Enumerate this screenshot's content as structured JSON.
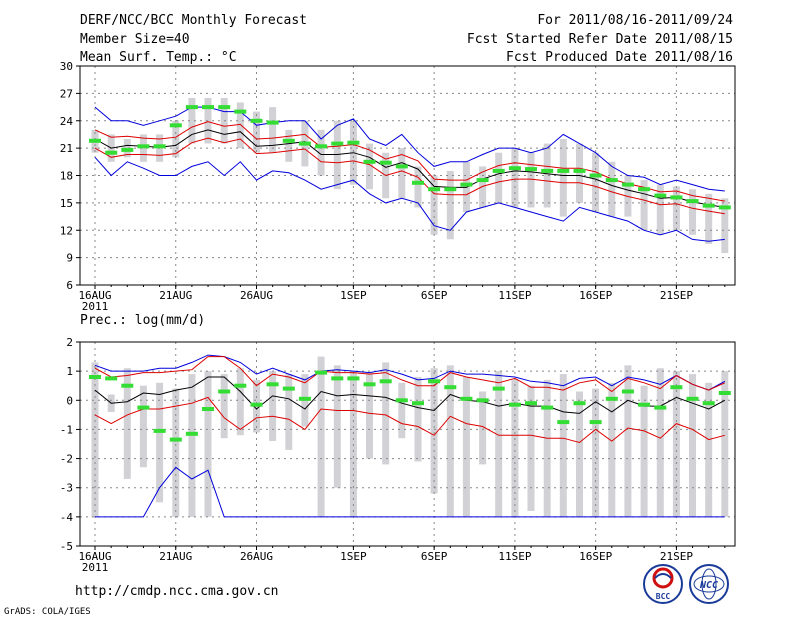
{
  "header": {
    "title": "DERF/NCC/BCC Monthly Forecast",
    "member_size": "Member Size=40",
    "variable": "Mean Surf. Temp.: °C",
    "period": "For 2011/08/16-2011/09/24",
    "started": "Fcst Started Refer Date 2011/08/15",
    "produced": "Fcst Produced Date 2011/08/16"
  },
  "footer": {
    "url": "http://cmdp.ncc.cma.gov.cn",
    "grads": "GrADS: COLA/IGES",
    "logo_bcc_text": "BCC",
    "logo_ncc_text": "NCC"
  },
  "colors": {
    "ensemble_mean": "#000000",
    "std_band": "#dd0000",
    "min_max": "#0000dd",
    "observed": "#33dd33",
    "spread_box": "#d2d2d6",
    "grid": "#888888"
  },
  "chart_data": [
    {
      "type": "line",
      "title": "Mean Surf. Temp.: °C",
      "x_start": "2011-08-16",
      "days": 40,
      "xticks": [
        {
          "day": 0,
          "label": "16AUG"
        },
        {
          "day": 5,
          "label": "21AUG"
        },
        {
          "day": 10,
          "label": "26AUG"
        },
        {
          "day": 16,
          "label": "1SEP"
        },
        {
          "day": 21,
          "label": "6SEP"
        },
        {
          "day": 26,
          "label": "11SEP"
        },
        {
          "day": 31,
          "label": "16SEP"
        },
        {
          "day": 36,
          "label": "21SEP"
        }
      ],
      "year_label": "2011",
      "ylim": [
        6,
        30
      ],
      "yticks": [
        "6",
        "9",
        "12",
        "15",
        "18",
        "21",
        "24",
        "27",
        "30"
      ],
      "grid": true,
      "series": [
        {
          "name": "ensemble mean",
          "values": [
            22.0,
            21.0,
            21.3,
            21.2,
            21.1,
            21.3,
            22.5,
            23.0,
            22.5,
            22.8,
            21.2,
            21.3,
            21.5,
            21.7,
            20.3,
            20.3,
            20.5,
            20.0,
            18.9,
            19.4,
            18.7,
            16.8,
            16.7,
            16.7,
            17.6,
            18.2,
            18.5,
            18.4,
            18.2,
            18.0,
            18.0,
            17.6,
            16.9,
            16.4,
            16.0,
            15.5,
            15.6,
            15.1,
            14.8,
            14.5
          ]
        },
        {
          "name": "mean + std",
          "values": [
            23.0,
            22.2,
            22.3,
            22.1,
            22.0,
            22.2,
            23.3,
            23.9,
            23.4,
            23.6,
            22.0,
            22.1,
            22.3,
            22.5,
            21.1,
            21.2,
            21.4,
            20.8,
            19.8,
            20.3,
            19.6,
            17.6,
            17.5,
            17.5,
            18.4,
            19.1,
            19.4,
            19.2,
            19.0,
            18.8,
            18.8,
            18.4,
            17.6,
            17.1,
            16.7,
            16.2,
            16.3,
            15.8,
            15.5,
            15.2
          ]
        },
        {
          "name": "mean - std",
          "values": [
            21.0,
            20.0,
            20.3,
            20.3,
            20.2,
            20.4,
            21.6,
            22.1,
            21.6,
            22.0,
            20.4,
            20.5,
            20.7,
            20.9,
            19.5,
            19.4,
            19.6,
            19.2,
            18.0,
            18.5,
            17.8,
            16.0,
            15.9,
            15.9,
            16.8,
            17.3,
            17.6,
            17.6,
            17.4,
            17.2,
            17.2,
            16.8,
            16.2,
            15.7,
            15.3,
            14.8,
            14.9,
            14.4,
            14.1,
            13.8
          ]
        },
        {
          "name": "ensemble max",
          "values": [
            25.5,
            24.0,
            24.0,
            23.5,
            24.0,
            24.5,
            25.5,
            25.5,
            25.0,
            25.0,
            23.5,
            23.8,
            24.0,
            24.0,
            22.0,
            23.5,
            24.2,
            22.0,
            21.3,
            22.5,
            20.5,
            19.0,
            19.5,
            19.5,
            20.3,
            21.0,
            21.0,
            20.5,
            21.0,
            22.5,
            21.5,
            20.5,
            19.0,
            18.0,
            17.8,
            17.0,
            17.5,
            17.0,
            16.5,
            16.3
          ]
        },
        {
          "name": "ensemble min",
          "values": [
            20.0,
            18.0,
            19.5,
            18.8,
            18.0,
            18.0,
            19.0,
            19.5,
            18.0,
            19.5,
            17.5,
            18.5,
            18.3,
            17.5,
            16.5,
            17.0,
            17.5,
            16.0,
            15.0,
            15.5,
            15.0,
            12.5,
            12.0,
            14.0,
            14.5,
            15.0,
            14.5,
            14.0,
            13.5,
            13.0,
            14.5,
            14.0,
            13.5,
            13.0,
            12.0,
            11.5,
            12.0,
            11.0,
            10.8,
            11.0
          ]
        },
        {
          "name": "observed",
          "values": [
            21.8,
            20.5,
            20.8,
            21.2,
            21.2,
            23.5,
            25.5,
            25.5,
            25.5,
            25.0,
            24.0,
            23.8,
            21.8,
            21.5,
            21.2,
            21.5,
            21.6,
            19.5,
            19.4,
            19.0,
            17.2,
            16.5,
            16.5,
            17.0,
            17.5,
            18.5,
            18.8,
            18.7,
            18.5,
            18.5,
            18.5,
            18.0,
            17.5,
            17.0,
            16.5,
            15.8,
            15.6,
            15.2,
            14.7,
            14.5
          ]
        },
        {
          "name": "spread upper",
          "values": [
            23.0,
            22.5,
            22.0,
            22.5,
            22.5,
            24.0,
            26.5,
            26.5,
            26.5,
            26.0,
            25.0,
            25.5,
            23.0,
            24.0,
            23.0,
            24.0,
            24.0,
            21.5,
            20.5,
            21.0,
            19.0,
            18.0,
            18.5,
            19.5,
            19.0,
            20.5,
            21.0,
            20.5,
            21.5,
            22.0,
            21.5,
            20.5,
            19.5,
            18.0,
            17.5,
            17.0,
            16.8,
            16.5,
            16.0,
            15.5
          ]
        },
        {
          "name": "spread lower",
          "values": [
            20.5,
            19.5,
            20.0,
            19.5,
            19.5,
            20.0,
            21.5,
            21.5,
            21.5,
            21.0,
            20.5,
            20.5,
            19.5,
            19.0,
            18.0,
            16.5,
            17.0,
            16.5,
            15.5,
            15.5,
            14.5,
            11.5,
            11.0,
            14.0,
            14.5,
            15.0,
            14.5,
            14.5,
            14.5,
            13.5,
            15.0,
            14.0,
            13.5,
            13.5,
            12.0,
            11.5,
            12.0,
            11.5,
            10.5,
            9.5
          ]
        }
      ]
    },
    {
      "type": "line",
      "title": "Prec.: log(mm/d)",
      "x_start": "2011-08-16",
      "days": 40,
      "xticks": [
        {
          "day": 0,
          "label": "16AUG"
        },
        {
          "day": 5,
          "label": "21AUG"
        },
        {
          "day": 10,
          "label": "26AUG"
        },
        {
          "day": 16,
          "label": "1SEP"
        },
        {
          "day": 21,
          "label": "6SEP"
        },
        {
          "day": 26,
          "label": "11SEP"
        },
        {
          "day": 31,
          "label": "16SEP"
        },
        {
          "day": 36,
          "label": "21SEP"
        }
      ],
      "year_label": "2011",
      "ylim": [
        -5,
        2
      ],
      "yticks": [
        "-5",
        "-4",
        "-3",
        "-2",
        "-1",
        "0",
        "1",
        "2"
      ],
      "grid": true,
      "series": [
        {
          "name": "ensemble mean",
          "values": [
            0.35,
            -0.1,
            -0.05,
            0.25,
            0.2,
            0.35,
            0.45,
            0.8,
            0.8,
            0.3,
            -0.3,
            0.15,
            0.05,
            -0.3,
            0.3,
            0.15,
            0.2,
            0.15,
            0.1,
            -0.1,
            -0.25,
            -0.35,
            0.2,
            0.0,
            -0.05,
            -0.2,
            -0.1,
            -0.2,
            -0.2,
            -0.4,
            -0.45,
            -0.05,
            -0.4,
            0.0,
            -0.2,
            -0.2,
            0.1,
            -0.1,
            -0.3,
            0.0
          ]
        },
        {
          "name": "mean + std",
          "values": [
            1.1,
            0.8,
            0.85,
            0.95,
            0.95,
            1.0,
            1.05,
            1.5,
            1.5,
            1.1,
            0.5,
            0.9,
            0.8,
            0.6,
            1.0,
            0.95,
            0.95,
            0.9,
            0.95,
            0.7,
            0.5,
            0.5,
            0.95,
            0.8,
            0.7,
            0.6,
            0.75,
            0.45,
            0.45,
            0.35,
            0.6,
            0.7,
            0.3,
            0.75,
            0.6,
            0.4,
            0.85,
            0.55,
            0.35,
            0.6
          ]
        },
        {
          "name": "mean - std",
          "values": [
            -0.5,
            -0.8,
            -0.5,
            -0.3,
            -0.3,
            -0.2,
            -0.1,
            0.1,
            -0.6,
            -1.0,
            -0.6,
            -0.55,
            -0.65,
            -1.0,
            -0.3,
            -0.35,
            -0.35,
            -0.45,
            -0.5,
            -0.8,
            -0.9,
            -1.2,
            -0.55,
            -0.8,
            -0.9,
            -1.2,
            -1.2,
            -1.2,
            -1.3,
            -1.3,
            -1.45,
            -1.0,
            -1.4,
            -0.95,
            -1.05,
            -1.3,
            -0.8,
            -1.0,
            -1.35,
            -1.2
          ]
        },
        {
          "name": "ensemble max",
          "values": [
            1.2,
            1.0,
            1.0,
            1.0,
            1.1,
            1.1,
            1.3,
            1.55,
            1.5,
            1.3,
            0.9,
            1.1,
            0.9,
            0.7,
            1.0,
            1.05,
            1.0,
            0.95,
            1.05,
            0.9,
            0.7,
            0.75,
            1.0,
            0.9,
            0.9,
            0.85,
            0.8,
            0.65,
            0.6,
            0.5,
            0.75,
            0.8,
            0.5,
            0.8,
            0.7,
            0.55,
            0.85,
            0.55,
            0.35,
            0.65
          ]
        },
        {
          "name": "ensemble min",
          "values": [
            -4.0,
            -4.0,
            -4.0,
            -4.0,
            -3.0,
            -2.3,
            -2.7,
            -2.4,
            -4.0,
            -4.0,
            -4.0,
            -4.0,
            -4.0,
            -4.0,
            -4.0,
            -4.0,
            -4.0,
            -4.0,
            -4.0,
            -4.0,
            -4.0,
            -4.0,
            -4.0,
            -4.0,
            -4.0,
            -4.0,
            -4.0,
            -4.0,
            -4.0,
            -4.0,
            -4.0,
            -4.0,
            -4.0,
            -4.0,
            -4.0,
            -4.0,
            -4.0,
            -4.0,
            -4.0,
            -4.0
          ]
        },
        {
          "name": "observed",
          "values": [
            0.8,
            0.75,
            0.5,
            -0.25,
            -1.05,
            -1.35,
            -1.15,
            -0.3,
            0.3,
            0.5,
            -0.15,
            0.55,
            0.4,
            0.05,
            0.95,
            0.75,
            0.75,
            0.55,
            0.65,
            0.0,
            -0.1,
            0.65,
            0.45,
            0.05,
            0.0,
            0.4,
            -0.15,
            -0.1,
            -0.25,
            -0.75,
            -0.1,
            -0.75,
            0.05,
            0.3,
            -0.15,
            -0.25,
            0.45,
            0.05,
            -0.1,
            0.25
          ]
        },
        {
          "name": "spread upper",
          "values": [
            1.3,
            0.2,
            1.1,
            0.5,
            0.6,
            0.4,
            0.9,
            1.0,
            0.9,
            1.1,
            0.7,
            1.0,
            0.9,
            0.9,
            1.5,
            1.2,
            1.0,
            0.95,
            1.3,
            0.6,
            0.8,
            1.1,
            1.2,
            0.8,
            0.3,
            1.0,
            0.7,
            0.5,
            0.7,
            0.9,
            0.3,
            0.4,
            0.6,
            1.2,
            0.5,
            1.1,
            1.0,
            0.9,
            0.6,
            1.0
          ]
        },
        {
          "name": "spread lower",
          "values": [
            -4.0,
            -0.4,
            -2.7,
            -2.3,
            -3.5,
            -4.0,
            -4.0,
            -4.0,
            -1.3,
            -1.2,
            -1.1,
            -1.4,
            -1.7,
            -0.9,
            -4.0,
            -3.0,
            -4.0,
            -2.0,
            -2.2,
            -1.3,
            -2.1,
            -3.2,
            -4.0,
            -4.0,
            -2.2,
            -4.0,
            -4.0,
            -3.8,
            -4.0,
            -4.0,
            -4.0,
            -4.0,
            -4.0,
            -4.0,
            -4.0,
            -4.0,
            -4.0,
            -4.0,
            -4.0,
            -4.0
          ]
        }
      ]
    }
  ]
}
